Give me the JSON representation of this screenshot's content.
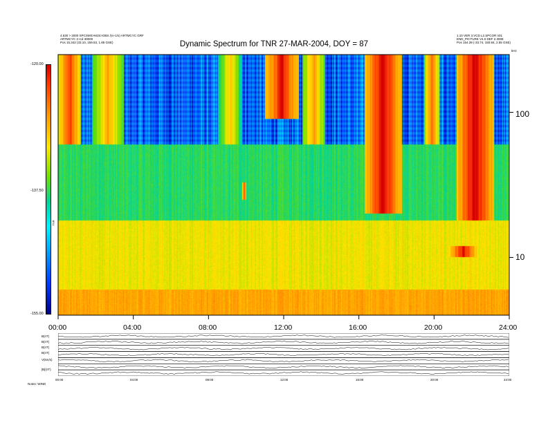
{
  "chart_data": {
    "type": "heatmap",
    "title": "Dynamic Spectrum for TNR 27-MAR-2004, DOY = 87",
    "header_left": [
      "4.530 > 2000  SPCSMS>MJS>OBS   /(s+1/s)   ARTMCYC  GRF",
      "ARTMCYC 3  rcd 30000",
      "Pos    15.342  (33.10, 159.53, 1.85 GSE)"
    ],
    "header_right": [
      "1.10 VER 3.VCD                                  L2.SPCOR n01",
      "END_PICTURE  V4.0 DEF 2.3008",
      "Pos    154.39 (-33.74, 150.84, 2.55 GSE)"
    ],
    "x_ticks": [
      "00:00",
      "04:00",
      "08:00",
      "12:00",
      "16:00",
      "20:00",
      "24:00"
    ],
    "x_range_hours": [
      0,
      24
    ],
    "y_right_ticks": [
      "100",
      "10"
    ],
    "y_right_unit": "kHz",
    "y_range_khz": [
      4,
      250
    ],
    "colorbar_ticks": [
      "-120.00",
      "-137.50",
      "-155.00"
    ],
    "colorbar_range": [
      -155,
      -120
    ],
    "colorbar_label": "TNR",
    "panel_labels_left": [
      "B(nT)",
      "B(nT)",
      "B(nT)",
      "B(nT)",
      "V(km/s)",
      "",
      "|B|(nT)"
    ],
    "panel_x_ticks": [
      "00:00",
      "04:00",
      "08:00",
      "12:00",
      "16:00",
      "20:00",
      "24:00"
    ],
    "footer_left": "Notes:   WIND",
    "bands": [
      {
        "name": "upper bursty band",
        "freq_khz": [
          60,
          250
        ],
        "background_db": -145
      },
      {
        "name": "middle cyan band",
        "freq_khz": [
          18,
          60
        ],
        "background_db": -138
      },
      {
        "name": "green continuum",
        "freq_khz": [
          6,
          18
        ],
        "background_db": -132
      },
      {
        "name": "yellow floor",
        "freq_khz": [
          4,
          6
        ],
        "background_db": -128
      }
    ],
    "bursts": [
      {
        "start_h": 0.0,
        "end_h": 1.2,
        "freq_khz": [
          60,
          250
        ],
        "level_db": -123
      },
      {
        "start_h": 1.8,
        "end_h": 3.5,
        "freq_khz": [
          60,
          250
        ],
        "level_db": -128
      },
      {
        "start_h": 8.5,
        "end_h": 9.8,
        "freq_khz": [
          60,
          250
        ],
        "level_db": -130
      },
      {
        "start_h": 11.0,
        "end_h": 12.8,
        "freq_khz": [
          90,
          250
        ],
        "level_db": -121
      },
      {
        "start_h": 13.0,
        "end_h": 14.2,
        "freq_khz": [
          60,
          250
        ],
        "level_db": -127
      },
      {
        "start_h": 16.3,
        "end_h": 18.3,
        "freq_khz": [
          20,
          250
        ],
        "level_db": -120
      },
      {
        "start_h": 19.5,
        "end_h": 20.3,
        "freq_khz": [
          60,
          250
        ],
        "level_db": -125
      },
      {
        "start_h": 21.2,
        "end_h": 23.2,
        "freq_khz": [
          18,
          250
        ],
        "level_db": -120
      },
      {
        "start_h": 9.8,
        "end_h": 10.0,
        "freq_khz": [
          25,
          33
        ],
        "level_db": -122
      },
      {
        "start_h": 20.8,
        "end_h": 22.3,
        "freq_khz": [
          10,
          12
        ],
        "level_db": -121
      }
    ]
  }
}
